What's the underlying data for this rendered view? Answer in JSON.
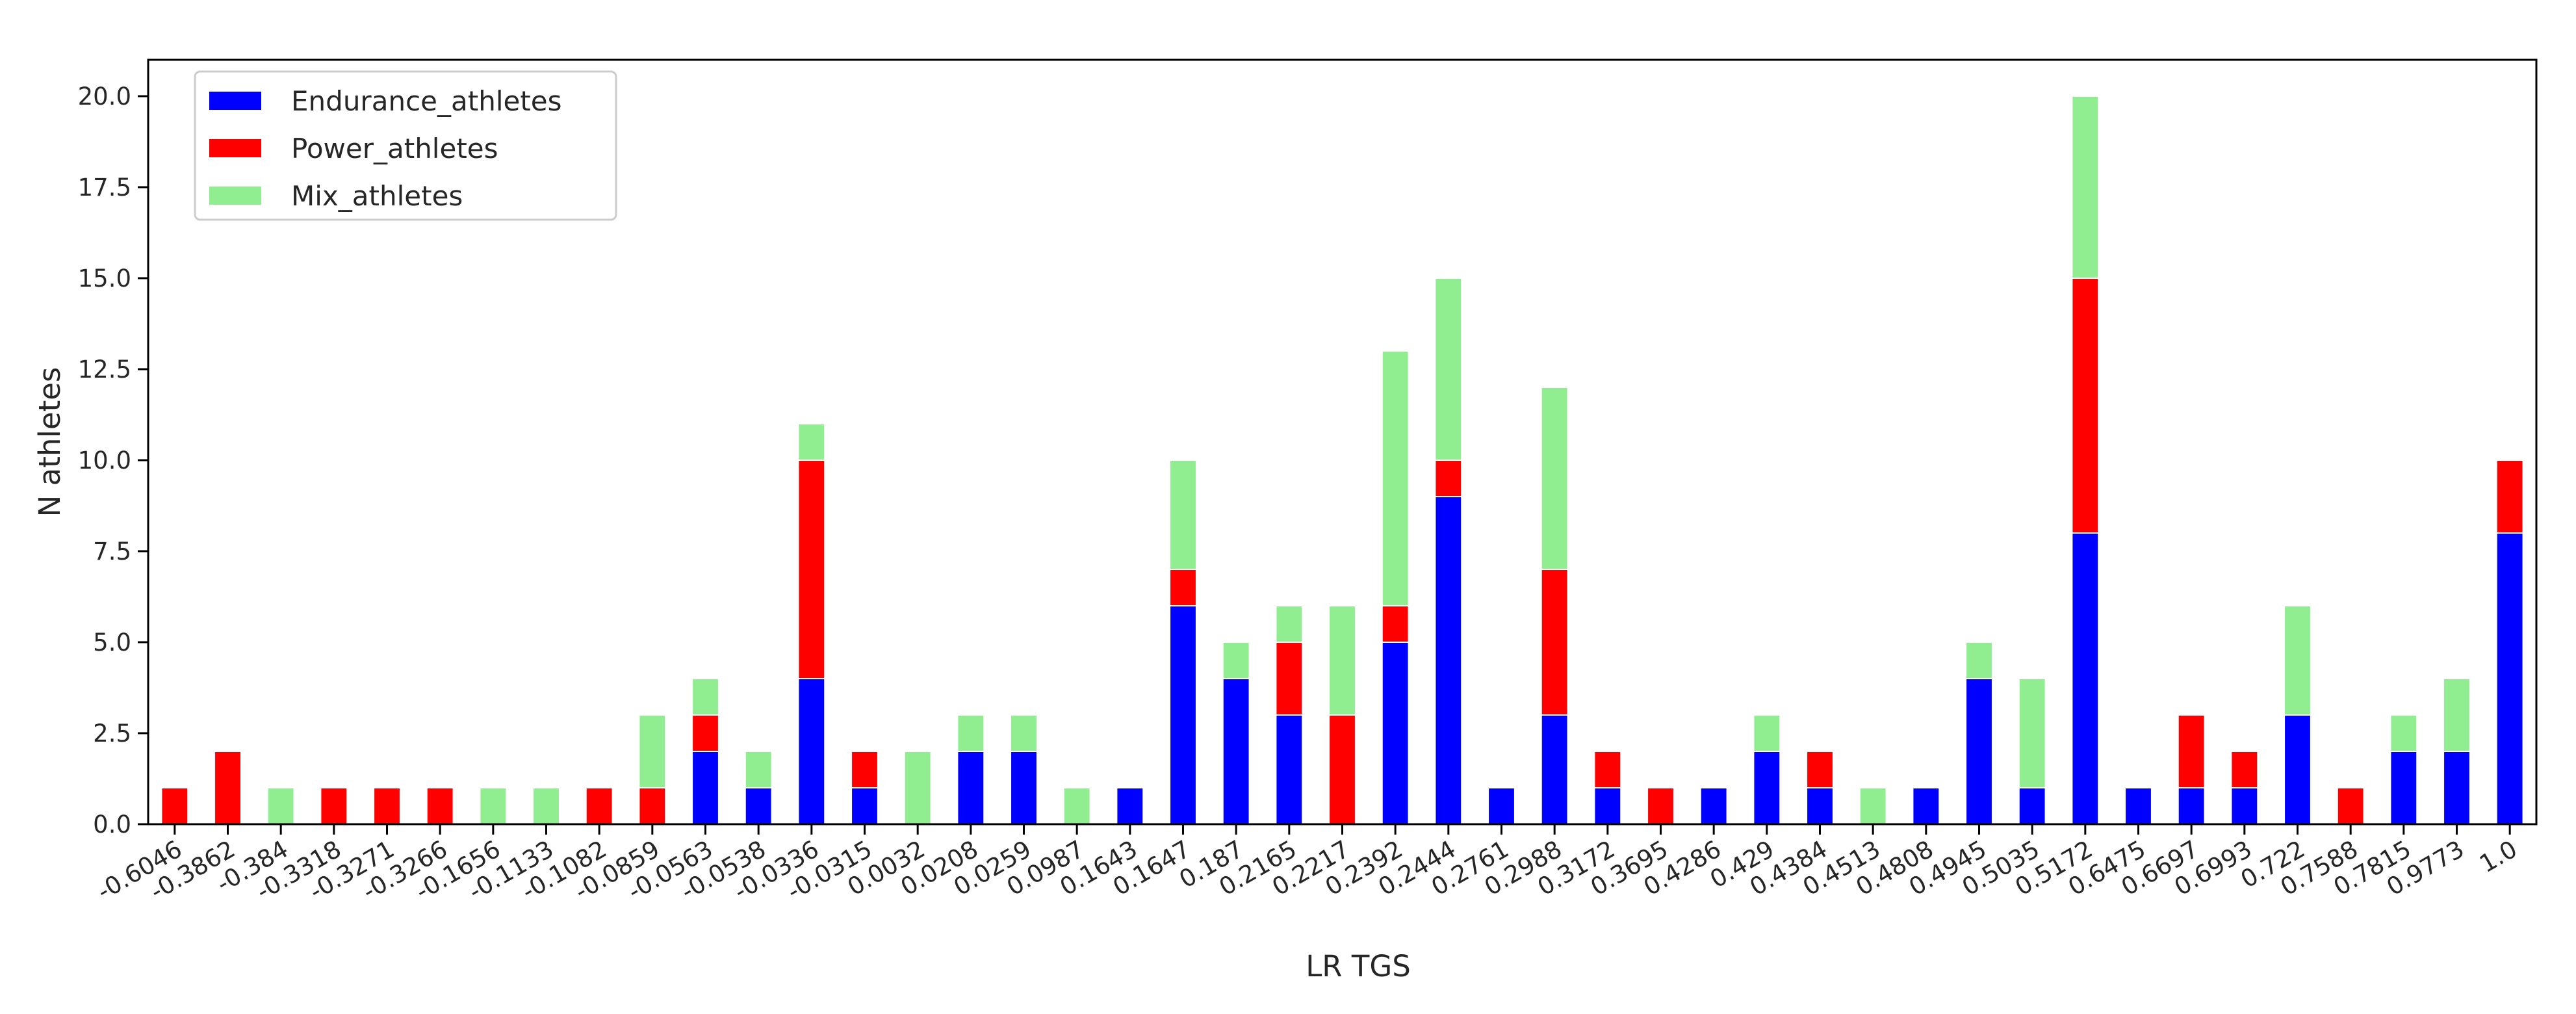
{
  "chart_data": {
    "type": "bar",
    "stacked": true,
    "xlabel": "LR TGS",
    "ylabel": "N athletes",
    "ylim": [
      0,
      21
    ],
    "yticks": [
      "0.0",
      "2.5",
      "5.0",
      "7.5",
      "10.0",
      "12.5",
      "15.0",
      "17.5",
      "20.0"
    ],
    "grid": false,
    "legend": "top-left",
    "categories": [
      "-0.6046",
      "-0.3862",
      "-0.384",
      "-0.3318",
      "-0.3271",
      "-0.3266",
      "-0.1656",
      "-0.1133",
      "-0.1082",
      "-0.0859",
      "-0.0563",
      "-0.0538",
      "-0.0336",
      "-0.0315",
      "0.0032",
      "0.0208",
      "0.0259",
      "0.0987",
      "0.1643",
      "0.1647",
      "0.187",
      "0.2165",
      "0.2217",
      "0.2392",
      "0.2444",
      "0.2761",
      "0.2988",
      "0.3172",
      "0.3695",
      "0.4286",
      "0.429",
      "0.4384",
      "0.4513",
      "0.4808",
      "0.4945",
      "0.5035",
      "0.5172",
      "0.6475",
      "0.6697",
      "0.6993",
      "0.722",
      "0.7588",
      "0.7815",
      "0.9773",
      "1.0"
    ],
    "series": [
      {
        "name": "Endurance_athletes",
        "color": "#0000ff",
        "values": [
          0,
          0,
          0,
          0,
          0,
          0,
          0,
          0,
          0,
          0,
          2,
          1,
          4,
          1,
          0,
          2,
          2,
          0,
          1,
          6,
          4,
          3,
          0,
          5,
          9,
          1,
          3,
          1,
          0,
          1,
          2,
          1,
          0,
          1,
          4,
          1,
          8,
          1,
          1,
          1,
          3,
          0,
          2,
          2,
          8
        ]
      },
      {
        "name": "Power_athletes",
        "color": "#ff0000",
        "values": [
          1,
          2,
          0,
          1,
          1,
          1,
          0,
          0,
          1,
          1,
          1,
          0,
          6,
          1,
          0,
          0,
          0,
          0,
          0,
          1,
          0,
          2,
          3,
          1,
          1,
          0,
          4,
          1,
          1,
          0,
          0,
          1,
          0,
          0,
          0,
          0,
          7,
          0,
          2,
          1,
          0,
          1,
          0,
          0,
          2
        ]
      },
      {
        "name": "Mix_athletes",
        "color": "#90ee90",
        "values": [
          0,
          0,
          1,
          0,
          0,
          0,
          1,
          1,
          0,
          2,
          1,
          1,
          1,
          0,
          2,
          1,
          1,
          1,
          0,
          3,
          1,
          1,
          3,
          7,
          5,
          0,
          5,
          0,
          0,
          0,
          1,
          0,
          1,
          0,
          1,
          3,
          5,
          0,
          0,
          0,
          3,
          0,
          1,
          2,
          0
        ]
      }
    ]
  }
}
